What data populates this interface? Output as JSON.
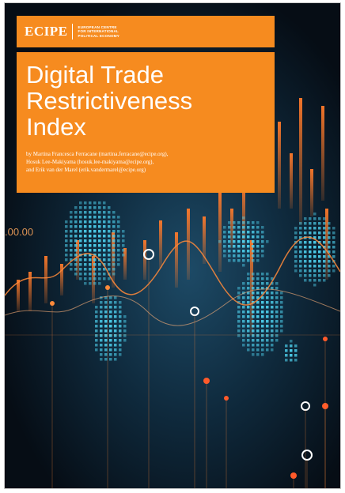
{
  "cover": {
    "logo_text": "ECIPE",
    "logo_sub_lines": [
      "EUROPEAN CENTRE",
      "FOR INTERNATIONAL",
      "POLITICAL ECONOMY"
    ],
    "title_lines": [
      "Digital Trade",
      "Restrictiveness",
      "Index"
    ],
    "authors": [
      "by Martina Francesca Ferracane (martina.ferracane@ecipe.org),",
      "Hosuk Lee-Makiyama (hosuk.lee-makiyama@ecipe.org),",
      "and Erik van der Marel (erik.vandermarel@ecipe.org)"
    ],
    "ticker_text": ".00.00",
    "colors": {
      "orange": "#f68b1f",
      "background": "#0a1622",
      "cyan": "#4fd3f0"
    }
  }
}
